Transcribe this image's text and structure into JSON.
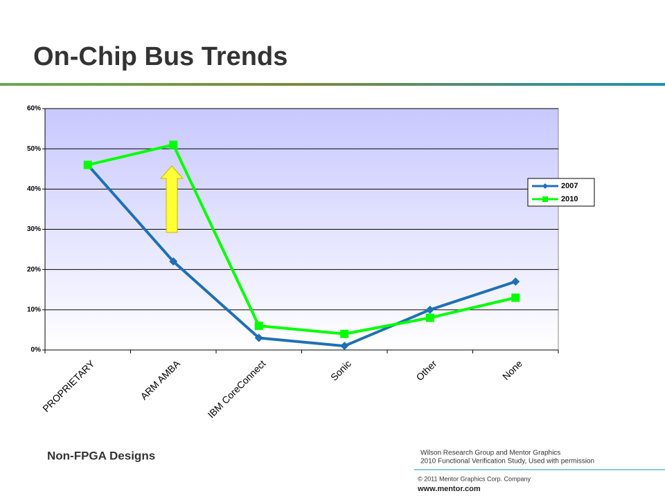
{
  "header": {
    "title": "On-Chip Bus Trends"
  },
  "chart_data": {
    "type": "line",
    "categories": [
      "PROPRIETARY",
      "ARM AMBA",
      "IBM CoreConnect",
      "Sonic",
      "Other",
      "None"
    ],
    "series": [
      {
        "name": "2007",
        "color": "#1f6fb5",
        "marker": "diamond",
        "values": [
          46,
          22,
          3,
          1,
          10,
          17
        ]
      },
      {
        "name": "2010",
        "color": "#00ff00",
        "marker": "square",
        "values": [
          46,
          51,
          6,
          4,
          8,
          13
        ]
      }
    ],
    "ylim": [
      0,
      60
    ],
    "yticks": [
      {
        "value": 0,
        "label": "0%"
      },
      {
        "value": 10,
        "label": "10%"
      },
      {
        "value": 20,
        "label": "20%"
      },
      {
        "value": 30,
        "label": "30%"
      },
      {
        "value": 40,
        "label": "40%"
      },
      {
        "value": 50,
        "label": "50%"
      },
      {
        "value": 60,
        "label": "60%"
      }
    ],
    "grid": true,
    "legend": "right"
  },
  "footer": {
    "caption": "Non-FPGA Designs",
    "source": [
      "Wilson Research Group and Mentor Graphics",
      "2010 Functional Verification Study,  Used with permission"
    ],
    "copyright": "© 2011 Mentor Graphics Corp. Company",
    "website": "www.mentor.com"
  }
}
